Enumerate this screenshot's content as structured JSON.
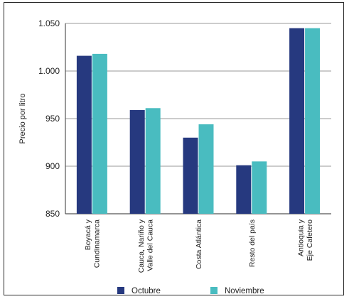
{
  "chart_data": {
    "type": "bar",
    "ylabel": "Precio por litro",
    "ylim": [
      850,
      1050
    ],
    "yticks": [
      "850",
      "900",
      "950",
      "1.000",
      "1.050"
    ],
    "ytick_values": [
      850,
      900,
      950,
      1000,
      1050
    ],
    "categories": [
      [
        "Boyacá y",
        "Cundinamarca"
      ],
      [
        "Cauca, Nariño y",
        "Valle del Cauca"
      ],
      [
        "Costa Atlántica"
      ],
      [
        "Resto del país"
      ],
      [
        "Antioquia y",
        "Eje Cafetero"
      ]
    ],
    "series": [
      {
        "name": "Octubre",
        "color": "#26397f",
        "values": [
          1016,
          959,
          930,
          901,
          1045
        ]
      },
      {
        "name": "Noviembre",
        "color": "#49bcc0",
        "values": [
          1018,
          961,
          944,
          905,
          1045
        ]
      }
    ],
    "grid": true,
    "legend_position": "bottom"
  }
}
